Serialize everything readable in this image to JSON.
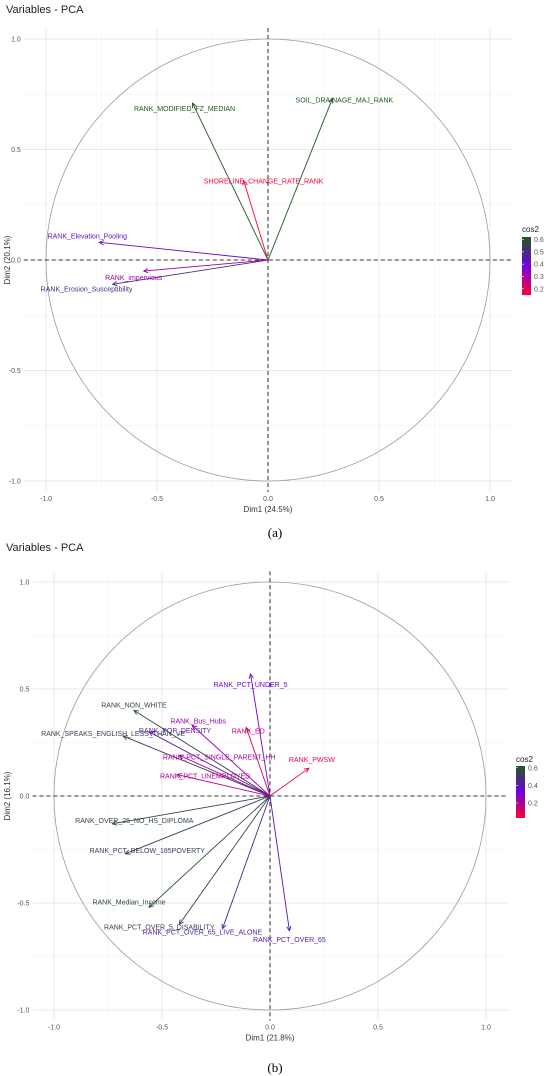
{
  "chart_data": [
    {
      "type": "scatter",
      "subtype": "pca-variable-correlation-circle",
      "title": "Variables - PCA",
      "xlabel": "Dim1 (24.5%)",
      "ylabel": "Dim2 (20.1%)",
      "xlim": [
        -1.0,
        1.0
      ],
      "ylim": [
        -1.0,
        1.0
      ],
      "xticks": [
        "-1.0",
        "-0.5",
        "0.0",
        "0.5",
        "1.0"
      ],
      "yticks": [
        "-1.0",
        "-0.5",
        "0.0",
        "0.5",
        "1.0"
      ],
      "grid": true,
      "legend_title": "cos2",
      "legend_position": "right",
      "legend_ticks": [
        "0.6",
        "0.5",
        "0.4",
        "0.3",
        "0.2"
      ],
      "legend_range": [
        0.15,
        0.62
      ],
      "colors": {
        "low": "#ff0033",
        "mid": "#7000e0",
        "high": "#1e5a1e"
      },
      "caption": "(a)",
      "variables": [
        {
          "name": "RANK_MODIFIED_FZ_MEDIAN",
          "x": -0.34,
          "y": 0.71,
          "cos2": 0.62
        },
        {
          "name": "SOIL_DRAINAGE_MAJ_RANK",
          "x": 0.29,
          "y": 0.73,
          "cos2": 0.62
        },
        {
          "name": "SHORELINE_CHANGE_RATE_RANK",
          "x": -0.11,
          "y": 0.36,
          "cos2": 0.15
        },
        {
          "name": "RANK_Elevation_Pooling",
          "x": -0.76,
          "y": 0.08,
          "cos2": 0.42
        },
        {
          "name": "RANK_Erosion_Susceptibility",
          "x": -0.7,
          "y": -0.11,
          "cos2": 0.5
        },
        {
          "name": "RANK_impervious",
          "x": -0.56,
          "y": -0.05,
          "cos2": 0.31
        }
      ]
    },
    {
      "type": "scatter",
      "subtype": "pca-variable-correlation-circle",
      "title": "Variables - PCA",
      "xlabel": "Dim1 (21.8%)",
      "ylabel": "Dim2 (16.1%)",
      "xlim": [
        -1.0,
        1.0
      ],
      "ylim": [
        -1.0,
        1.0
      ],
      "xticks": [
        "-1.0",
        "-0.5",
        "0.0",
        "0.5",
        "1.0"
      ],
      "yticks": [
        "-1.0",
        "-0.5",
        "0.0",
        "0.5",
        "1.0"
      ],
      "grid": true,
      "legend_title": "cos2",
      "legend_position": "right",
      "legend_ticks": [
        "0.6",
        "0.4",
        "0.2"
      ],
      "legend_range": [
        0.03,
        0.62
      ],
      "colors": {
        "low": "#ff0033",
        "mid": "#7000e0",
        "high": "#1e5a1e"
      },
      "caption": "(b)",
      "variables": [
        {
          "name": "RANK_PCT_UNDER_5",
          "x": -0.09,
          "y": 0.57,
          "cos2": 0.33
        },
        {
          "name": "RANK_NON_WHITE",
          "x": -0.63,
          "y": 0.4,
          "cos2": 0.55
        },
        {
          "name": "RANK_Bus_Hubs",
          "x": -0.36,
          "y": 0.33,
          "cos2": 0.24
        },
        {
          "name": "RANK_POP_DENSITY",
          "x": -0.56,
          "y": 0.3,
          "cos2": 0.4
        },
        {
          "name": "RANK_SPEAKS_ENGLISH_LESS_THAN_VE",
          "x": -0.68,
          "y": 0.28,
          "cos2": 0.54
        },
        {
          "name": "RANK_ED",
          "x": -0.11,
          "y": 0.32,
          "cos2": 0.11
        },
        {
          "name": "RANK_PCT_SINGLE_PARENT_HH",
          "x": -0.42,
          "y": 0.19,
          "cos2": 0.21
        },
        {
          "name": "RANK_PCT_UNEMPLOYED",
          "x": -0.43,
          "y": 0.1,
          "cos2": 0.19
        },
        {
          "name": "RANK_PWSW",
          "x": 0.18,
          "y": 0.13,
          "cos2": 0.05
        },
        {
          "name": "RANK_OVER_25_NO_HS_DIPLOMA",
          "x": -0.73,
          "y": -0.13,
          "cos2": 0.55
        },
        {
          "name": "RANK_PCT_BELOW_185POVERTY",
          "x": -0.67,
          "y": -0.27,
          "cos2": 0.52
        },
        {
          "name": "RANK_Median_Income",
          "x": -0.56,
          "y": -0.52,
          "cos2": 0.58
        },
        {
          "name": "RANK_PCT_OVER_5_DISABILITY",
          "x": -0.42,
          "y": -0.6,
          "cos2": 0.53
        },
        {
          "name": "RANK_PCT_OVER_65_LIVE_ALONE",
          "x": -0.22,
          "y": -0.62,
          "cos2": 0.43
        },
        {
          "name": "RANK_PCT_OVER_65",
          "x": 0.09,
          "y": -0.63,
          "cos2": 0.4
        }
      ]
    }
  ]
}
